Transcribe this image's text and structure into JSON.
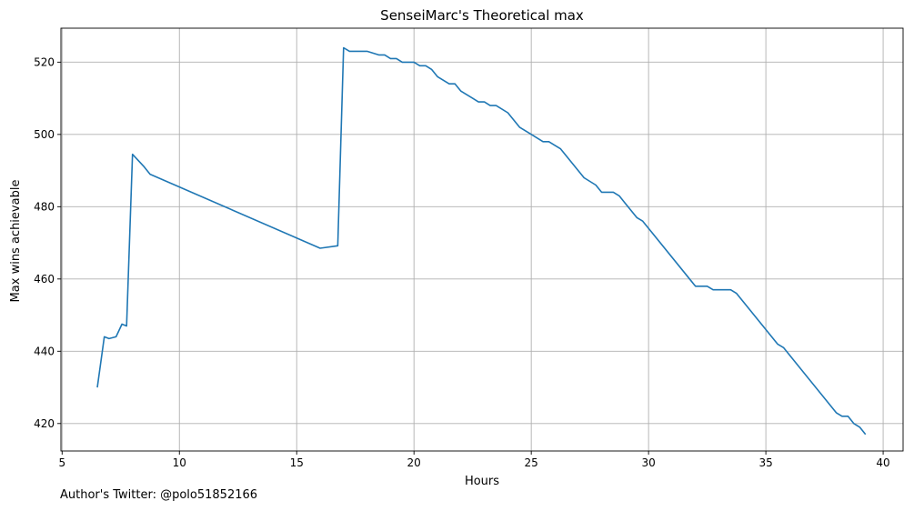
{
  "chart_data": {
    "type": "line",
    "title": "SenseiMarc's Theoretical max",
    "xlabel": "Hours",
    "ylabel": "Max wins achievable",
    "xlim": [
      4.95,
      40.85
    ],
    "ylim": [
      412.4,
      529.4
    ],
    "xticks": [
      5,
      10,
      15,
      20,
      25,
      30,
      35,
      40
    ],
    "yticks": [
      420,
      440,
      460,
      480,
      500,
      520
    ],
    "grid": true,
    "line_color": "#1f77b4",
    "series": [
      {
        "x": [
          6.5,
          6.8,
          7.0,
          7.3,
          7.55,
          7.75,
          8.0,
          8.5,
          8.75,
          16.0,
          16.75,
          17.0,
          17.25,
          18.0,
          18.5,
          18.75,
          19.0,
          19.25,
          19.5,
          20.0,
          20.25,
          20.5,
          20.75,
          21.0,
          21.5,
          21.75,
          22.0,
          22.5,
          22.75,
          23.0,
          23.25,
          23.5,
          24.0,
          24.25,
          24.5,
          25.0,
          25.5,
          25.75,
          26.0,
          26.25,
          26.5,
          27.0,
          27.25,
          27.75,
          28.0,
          28.25,
          28.5,
          28.75,
          29.0,
          29.5,
          29.75,
          32.0,
          32.5,
          32.75,
          33.0,
          33.25,
          33.5,
          33.75,
          35.5,
          35.75,
          38.0,
          38.25,
          38.5,
          38.75,
          39.0,
          39.25
        ],
        "y": [
          430,
          444,
          443.5,
          444,
          447.5,
          447,
          494.5,
          491,
          489,
          468.5,
          469.2,
          524,
          523,
          523,
          522,
          522,
          521,
          521,
          520,
          520,
          519,
          519,
          518,
          516,
          514,
          514,
          512,
          510,
          509,
          509,
          508,
          508,
          506,
          504,
          502,
          500,
          498,
          498,
          497,
          496,
          494,
          490,
          488,
          486,
          484,
          484,
          484,
          483,
          481,
          477,
          476,
          458,
          458,
          457,
          457,
          457,
          457,
          456,
          442,
          441,
          423,
          422,
          422,
          420,
          419,
          417
        ]
      }
    ]
  },
  "footer": {
    "credit": "Author's Twitter: @polo51852166"
  }
}
